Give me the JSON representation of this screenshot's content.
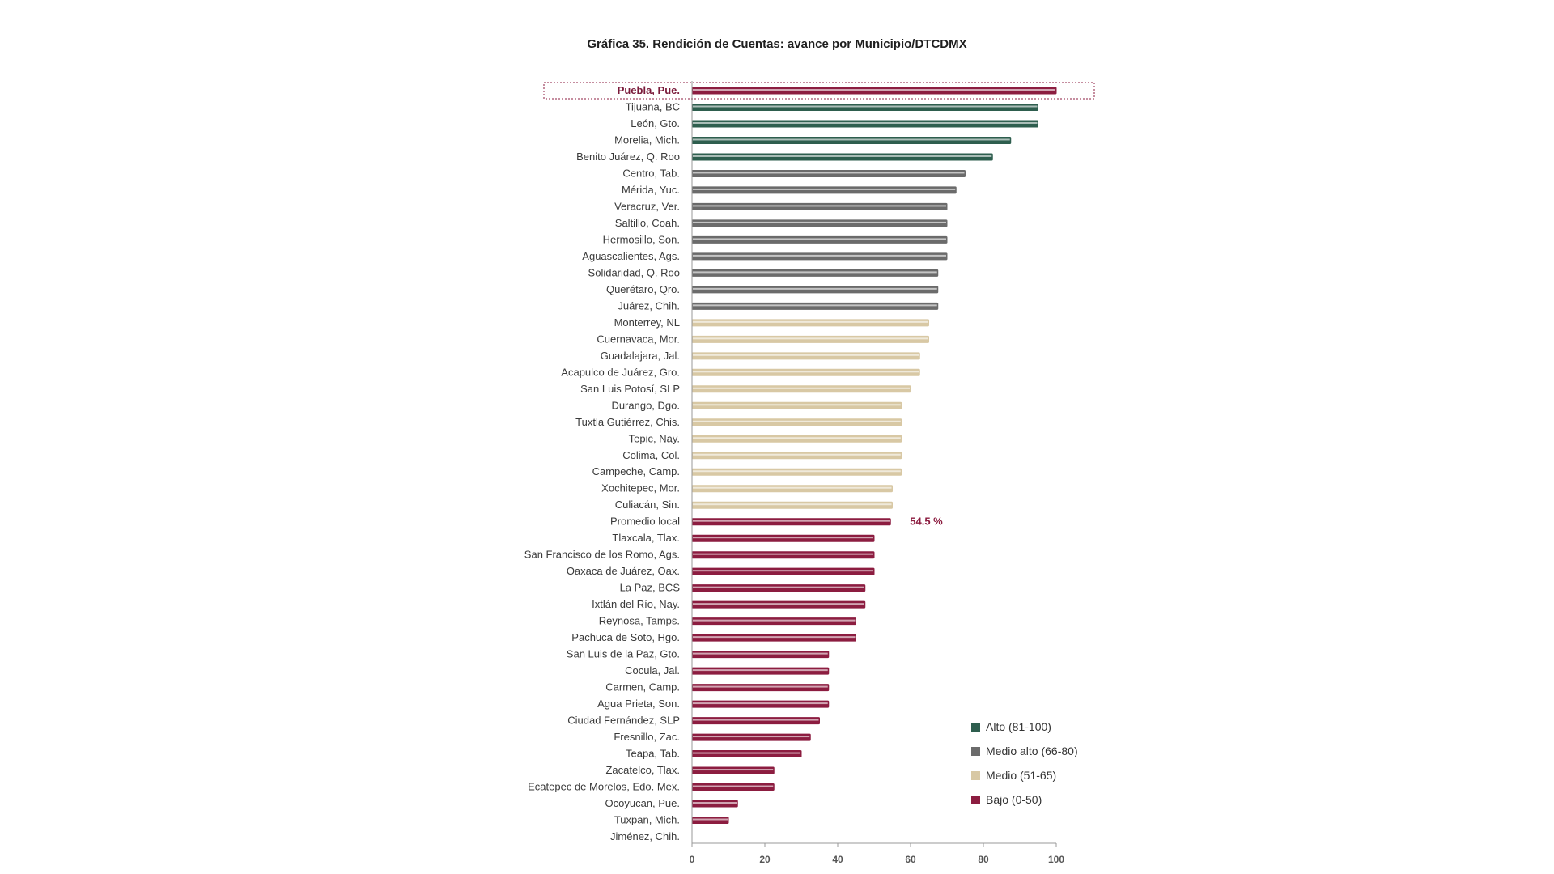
{
  "chart_data": {
    "type": "bar",
    "orientation": "horizontal",
    "title": "Gráfica 35. Rendición de Cuentas: avance por Municipio/DTCDMX",
    "xlim": [
      0,
      100
    ],
    "xticks": [
      "0",
      "20",
      "40",
      "60",
      "80",
      "100"
    ],
    "highlighted_category": "Puebla, Pue.",
    "average_label": "54.5 %",
    "legend_position": "bottom-right",
    "categories": [
      "Puebla, Pue.",
      "Tijuana, BC",
      "León, Gto.",
      "Morelia, Mich.",
      "Benito Juárez, Q. Roo",
      "Centro, Tab.",
      "Mérida, Yuc.",
      "Veracruz, Ver.",
      "Saltillo, Coah.",
      "Hermosillo, Son.",
      "Aguascalientes, Ags.",
      "Solidaridad, Q. Roo",
      "Querétaro, Qro.",
      "Juárez, Chih.",
      "Monterrey, NL",
      "Cuernavaca, Mor.",
      "Guadalajara, Jal.",
      "Acapulco de Juárez, Gro.",
      "San Luis Potosí, SLP",
      "Durango, Dgo.",
      "Tuxtla Gutiérrez, Chis.",
      "Tepic, Nay.",
      "Colima, Col.",
      "Campeche, Camp.",
      "Xochitepec, Mor.",
      "Culiacán, Sin.",
      "Promedio local",
      "Tlaxcala, Tlax.",
      "San Francisco de los Romo, Ags.",
      "Oaxaca de Juárez, Oax.",
      "La Paz, BCS",
      "Ixtlán del Río, Nay.",
      "Reynosa, Tamps.",
      "Pachuca de Soto, Hgo.",
      "San Luis de la Paz, Gto.",
      "Cocula, Jal.",
      "Carmen, Camp.",
      "Agua Prieta, Son.",
      "Ciudad Fernández, SLP",
      "Fresnillo, Zac.",
      "Teapa, Tab.",
      "Zacatelco, Tlax.",
      "Ecatepec de Morelos, Edo. Mex.",
      "Ocoyucan, Pue.",
      "Tuxpan, Mich.",
      "Jiménez, Chih."
    ],
    "values": [
      100,
      95,
      95,
      87.5,
      82.5,
      75,
      72.5,
      70,
      70,
      70,
      70,
      67.5,
      67.5,
      67.5,
      65,
      65,
      62.5,
      62.5,
      60,
      57.5,
      57.5,
      57.5,
      57.5,
      57.5,
      55,
      55,
      54.5,
      50,
      50,
      50,
      47.5,
      47.5,
      45,
      45,
      37.5,
      37.5,
      37.5,
      37.5,
      35,
      32.5,
      30,
      22.5,
      22.5,
      12.5,
      10,
      0
    ],
    "levels": [
      "bajo",
      "alto",
      "alto",
      "alto",
      "alto",
      "medio_alto",
      "medio_alto",
      "medio_alto",
      "medio_alto",
      "medio_alto",
      "medio_alto",
      "medio_alto",
      "medio_alto",
      "medio_alto",
      "medio",
      "medio",
      "medio",
      "medio",
      "medio",
      "medio",
      "medio",
      "medio",
      "medio",
      "medio",
      "medio",
      "medio",
      "bajo",
      "bajo",
      "bajo",
      "bajo",
      "bajo",
      "bajo",
      "bajo",
      "bajo",
      "bajo",
      "bajo",
      "bajo",
      "bajo",
      "bajo",
      "bajo",
      "bajo",
      "bajo",
      "bajo",
      "bajo",
      "bajo",
      "bajo"
    ],
    "legend": [
      {
        "key": "alto",
        "label": "Alto (81-100)",
        "color": "#2e5e4e"
      },
      {
        "key": "medio_alto",
        "label": "Medio alto (66-80)",
        "color": "#6b6b6b"
      },
      {
        "key": "medio",
        "label": "Medio (51-65)",
        "color": "#d8c8a4"
      },
      {
        "key": "bajo",
        "label": "Bajo (0-50)",
        "color": "#8c1d40"
      }
    ]
  }
}
